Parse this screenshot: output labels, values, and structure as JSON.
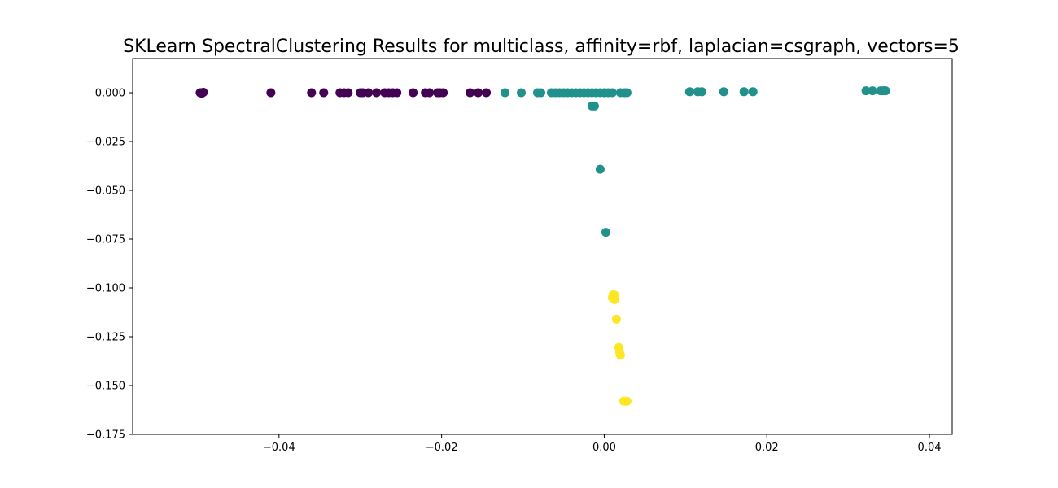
{
  "chart_data": {
    "type": "scatter",
    "title": "SKLearn SpectralClustering Results for multiclass, affinity=rbf, laplacian=csgraph, vectors=5",
    "xlabel": "",
    "ylabel": "",
    "xlim": [
      -0.058,
      0.0428
    ],
    "ylim": [
      -0.175,
      0.0175
    ],
    "xticks": [
      -0.04,
      -0.02,
      0.0,
      0.02,
      0.04
    ],
    "xtick_labels": [
      "−0.04",
      "−0.02",
      "0.00",
      "0.02",
      "0.04"
    ],
    "yticks": [
      0.0,
      -0.025,
      -0.05,
      -0.075,
      -0.1,
      -0.125,
      -0.15,
      -0.175
    ],
    "ytick_labels": [
      "0.000",
      "−0.025",
      "−0.050",
      "−0.075",
      "−0.100",
      "−0.125",
      "−0.150",
      "−0.175"
    ],
    "grid": false,
    "legend": "none",
    "colors": {
      "cluster_0": "#440154",
      "cluster_1": "#21918c",
      "cluster_2": "#fde725",
      "axes": "#000000",
      "background": "#ffffff"
    },
    "series": [
      {
        "cluster": 0,
        "color": "#440154",
        "points": [
          [
            -0.0497,
            0.0
          ],
          [
            -0.0495,
            -0.0003
          ],
          [
            -0.0493,
            0.0002
          ],
          [
            -0.0496,
            -0.0001
          ],
          [
            -0.041,
            0.0
          ],
          [
            -0.036,
            0.0
          ],
          [
            -0.0345,
            0.0
          ],
          [
            -0.0325,
            0.0
          ],
          [
            -0.032,
            0.0
          ],
          [
            -0.0315,
            0.0
          ],
          [
            -0.03,
            0.0
          ],
          [
            -0.0297,
            0.0
          ],
          [
            -0.029,
            0.0
          ],
          [
            -0.028,
            0.0
          ],
          [
            -0.027,
            0.0
          ],
          [
            -0.0265,
            0.0
          ],
          [
            -0.026,
            0.0
          ],
          [
            -0.0255,
            0.0
          ],
          [
            -0.0235,
            0.0
          ],
          [
            -0.022,
            0.0
          ],
          [
            -0.0215,
            0.0
          ],
          [
            -0.0205,
            0.0
          ],
          [
            -0.0202,
            0.0
          ],
          [
            -0.0198,
            0.0
          ],
          [
            -0.0165,
            0.0
          ],
          [
            -0.0155,
            0.0
          ],
          [
            -0.0145,
            0.0
          ]
        ]
      },
      {
        "cluster": 1,
        "color": "#21918c",
        "points": [
          [
            -0.0122,
            0.0
          ],
          [
            -0.0102,
            0.0
          ],
          [
            -0.0082,
            0.0
          ],
          [
            -0.0078,
            0.0
          ],
          [
            -0.0065,
            0.0
          ],
          [
            -0.006,
            0.0
          ],
          [
            -0.0055,
            0.0
          ],
          [
            -0.005,
            0.0
          ],
          [
            -0.0045,
            0.0
          ],
          [
            -0.004,
            0.0
          ],
          [
            -0.0035,
            0.0
          ],
          [
            -0.003,
            0.0
          ],
          [
            -0.0025,
            0.0
          ],
          [
            -0.002,
            0.0
          ],
          [
            -0.0015,
            0.0
          ],
          [
            -0.001,
            0.0
          ],
          [
            -0.0005,
            0.0
          ],
          [
            0.0,
            0.0
          ],
          [
            0.0005,
            0.0
          ],
          [
            0.001,
            0.0
          ],
          [
            0.002,
            0.0
          ],
          [
            0.0025,
            0.0
          ],
          [
            0.0028,
            0.0
          ],
          [
            -0.0015,
            -0.0068
          ],
          [
            -0.0012,
            -0.0068
          ],
          [
            -0.0005,
            -0.0392
          ],
          [
            0.0002,
            -0.0715
          ],
          [
            0.0105,
            0.0005
          ],
          [
            0.0115,
            0.0005
          ],
          [
            0.012,
            0.0005
          ],
          [
            0.0147,
            0.0005
          ],
          [
            0.0172,
            0.0005
          ],
          [
            0.0183,
            0.0005
          ],
          [
            0.0322,
            0.001
          ],
          [
            0.033,
            0.001
          ],
          [
            0.034,
            0.001
          ],
          [
            0.0343,
            0.001
          ],
          [
            0.0345,
            0.001
          ],
          [
            0.0346,
            0.001
          ]
        ]
      },
      {
        "cluster": 2,
        "color": "#fde725",
        "points": [
          [
            0.0011,
            -0.1035
          ],
          [
            0.0013,
            -0.1038
          ],
          [
            0.001,
            -0.105
          ],
          [
            0.0013,
            -0.106
          ],
          [
            0.0015,
            -0.116
          ],
          [
            0.0018,
            -0.1305
          ],
          [
            0.0019,
            -0.133
          ],
          [
            0.002,
            -0.1345
          ],
          [
            0.0024,
            -0.158
          ],
          [
            0.0026,
            -0.158
          ],
          [
            0.0028,
            -0.158
          ]
        ]
      }
    ]
  }
}
